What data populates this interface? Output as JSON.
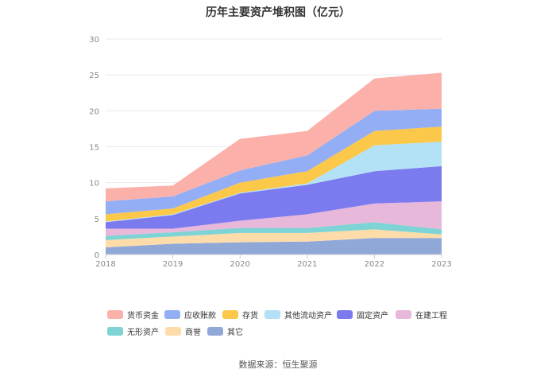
{
  "chart_data": {
    "type": "area",
    "stacked": true,
    "title": "历年主要资产堆积图（亿元）",
    "xlabel": "",
    "ylabel": "",
    "categories": [
      "2018",
      "2019",
      "2020",
      "2021",
      "2022",
      "2023"
    ],
    "ylim": [
      0,
      30
    ],
    "yticks": [
      "0",
      "5",
      "10",
      "15",
      "20",
      "25",
      "30"
    ],
    "series": [
      {
        "name": "其它",
        "color": "#8fa8d8",
        "values": [
          1.0,
          1.5,
          1.7,
          1.8,
          2.3,
          2.3
        ]
      },
      {
        "name": "商誉",
        "color": "#fddcaa",
        "values": [
          1.0,
          1.0,
          1.3,
          1.2,
          1.2,
          0.5
        ]
      },
      {
        "name": "无形资产",
        "color": "#7ed3d4",
        "values": [
          0.6,
          0.6,
          0.7,
          0.7,
          1.0,
          0.7
        ]
      },
      {
        "name": "在建工程",
        "color": "#e8b8db",
        "values": [
          1.0,
          0.5,
          1.0,
          1.9,
          2.6,
          3.9
        ]
      },
      {
        "name": "固定资产",
        "color": "#7b7bef",
        "values": [
          0.9,
          1.9,
          3.8,
          4.1,
          4.5,
          4.9
        ]
      },
      {
        "name": "其他流动资产",
        "color": "#b3e2f7",
        "values": [
          0.1,
          0.1,
          0.1,
          0.2,
          3.6,
          3.4
        ]
      },
      {
        "name": "存货",
        "color": "#fcc84a",
        "values": [
          1.0,
          0.8,
          1.4,
          1.7,
          2.0,
          2.1
        ]
      },
      {
        "name": "应收账款",
        "color": "#94aef5",
        "values": [
          1.8,
          1.7,
          1.7,
          2.2,
          2.8,
          2.5
        ]
      },
      {
        "name": "货币资金",
        "color": "#fbb1aa",
        "values": [
          1.8,
          1.5,
          4.4,
          3.4,
          4.5,
          5.0
        ]
      }
    ],
    "legend_order": [
      "货币资金",
      "应收账款",
      "存货",
      "其他流动资产",
      "固定资产",
      "在建工程",
      "无形资产",
      "商誉",
      "其它"
    ],
    "legend_position": "bottom",
    "grid": true
  },
  "source": "数据来源：恒生聚源"
}
